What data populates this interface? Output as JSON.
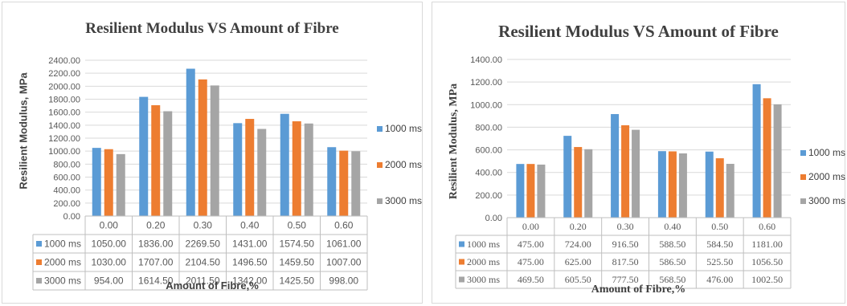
{
  "colors": {
    "series1": "#5b9bd5",
    "series2": "#ed7d31",
    "series3": "#a5a5a5"
  },
  "chart_data": [
    {
      "type": "bar",
      "title": "Resilient Modulus VS Amount of Fibre",
      "xlabel": "Amount of Fibre,%",
      "ylabel": "Resilient Modulus, MPa",
      "categories": [
        "0.00",
        "0.20",
        "0.30",
        "0.40",
        "0.50",
        "0.60"
      ],
      "yticks": [
        "0.00",
        "200.00",
        "400.00",
        "600.00",
        "800.00",
        "1000.00",
        "1200.00",
        "1400.00",
        "1600.00",
        "1800.00",
        "2000.00",
        "2200.00",
        "2400.00"
      ],
      "ylim": [
        0,
        2400
      ],
      "legend_position": "right",
      "data_table": true,
      "series": [
        {
          "name": "1000 ms",
          "values": [
            1050.0,
            1836.0,
            2269.5,
            1431.0,
            1574.5,
            1061.0
          ],
          "labels": [
            "1050.00",
            "1836.00",
            "2269.50",
            "1431.00",
            "1574.50",
            "1061.00"
          ]
        },
        {
          "name": "2000 ms",
          "values": [
            1030.0,
            1707.0,
            2104.5,
            1496.5,
            1459.5,
            1007.0
          ],
          "labels": [
            "1030.00",
            "1707.00",
            "2104.50",
            "1496.50",
            "1459.50",
            "1007.00"
          ]
        },
        {
          "name": "3000 ms",
          "values": [
            954.0,
            1614.5,
            2011.5,
            1342.0,
            1425.5,
            998.0
          ],
          "labels": [
            "954.00",
            "1614.50",
            "2011.50",
            "1342.00",
            "1425.50",
            "998.00"
          ]
        }
      ]
    },
    {
      "type": "bar",
      "title": "Resilient Modulus VS Amount of Fibre",
      "xlabel": "Amount of Fibre,%",
      "ylabel": "Resilient Modulus, MPa",
      "categories": [
        "0.00",
        "0.20",
        "0.30",
        "0.40",
        "0.50",
        "0.60"
      ],
      "yticks": [
        "0.00",
        "200.00",
        "400.00",
        "600.00",
        "800.00",
        "1000.00",
        "1200.00",
        "1400.00"
      ],
      "ylim": [
        0,
        1400
      ],
      "legend_position": "right",
      "data_table": true,
      "series": [
        {
          "name": "1000 ms",
          "values": [
            475.0,
            724.0,
            916.5,
            588.5,
            584.5,
            1181.0
          ],
          "labels": [
            "475.00",
            "724.00",
            "916.50",
            "588.50",
            "584.50",
            "1181.00"
          ]
        },
        {
          "name": "2000 ms",
          "values": [
            475.0,
            625.0,
            817.5,
            586.5,
            525.5,
            1056.5
          ],
          "labels": [
            "475.00",
            "625.00",
            "817.50",
            "586.50",
            "525.50",
            "1056.50"
          ]
        },
        {
          "name": "3000 ms",
          "values": [
            469.5,
            605.5,
            777.5,
            568.5,
            476.0,
            1002.5
          ],
          "labels": [
            "469.50",
            "605.50",
            "777.50",
            "568.50",
            "476.00",
            "1002.50"
          ]
        }
      ]
    }
  ]
}
